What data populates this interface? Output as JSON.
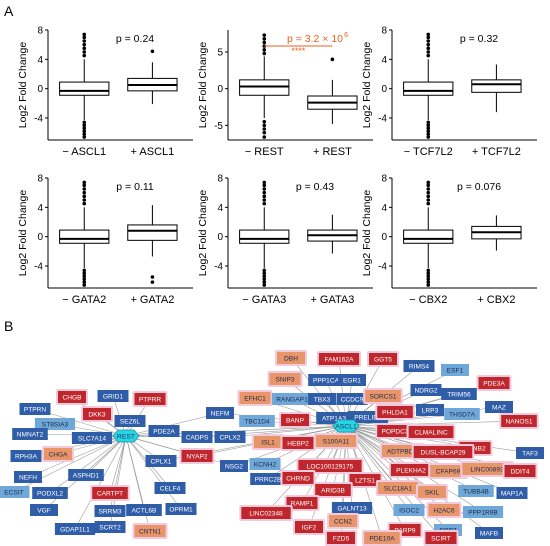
{
  "panel_a_label": "A",
  "panel_b_label": "B",
  "ylabel": "Log2 Fold Change",
  "superscript_six": "6",
  "chart_data": [
    {
      "type": "box",
      "id": "ascl1",
      "ylabel": "Log2 Fold Change",
      "ylim": [
        -7,
        8
      ],
      "yticks": [
        -4,
        0,
        4,
        8
      ],
      "categories": [
        "− ASCL1",
        "+ ASCL1"
      ],
      "pvalue": "p = 0.24",
      "boxes": [
        {
          "lower_whisker": -4.3,
          "q1": -0.9,
          "median": -0.3,
          "q3": 0.9,
          "upper_whisker": 4.0,
          "outliers": [
            -4.6,
            -5.0,
            -5.4,
            -5.8,
            -6.2,
            -6.6,
            4.5,
            5.0,
            5.5,
            6.0,
            6.5,
            7.0,
            7.4
          ]
        },
        {
          "lower_whisker": -2.1,
          "q1": -0.3,
          "median": 0.5,
          "q3": 1.4,
          "upper_whisker": 3.6,
          "outliers": [
            5.1
          ]
        }
      ]
    },
    {
      "type": "box",
      "id": "rest",
      "ylabel": "Log2 Fold Change",
      "ylim": [
        -7,
        8
      ],
      "yticks": [
        -5,
        0,
        5
      ],
      "categories": [
        "− REST",
        "+ REST"
      ],
      "pvalue": "p = 3.2 × 10",
      "pvalue_color": "#e8611a",
      "stars": "****",
      "boxes": [
        {
          "lower_whisker": -4.0,
          "q1": -0.9,
          "median": 0.3,
          "q3": 1.2,
          "upper_whisker": 4.4,
          "outliers": [
            -4.5,
            -5.0,
            -5.5,
            -6.0,
            -6.6,
            4.8,
            5.3,
            5.8,
            6.3,
            6.8,
            7.3
          ]
        },
        {
          "lower_whisker": -4.8,
          "q1": -2.8,
          "median": -1.9,
          "q3": -1.0,
          "upper_whisker": 1.2,
          "outliers": [
            4.0
          ]
        }
      ]
    },
    {
      "type": "box",
      "id": "tcf7l2",
      "ylabel": "Log2 Fold Change",
      "ylim": [
        -7,
        8
      ],
      "yticks": [
        -4,
        0,
        4,
        8
      ],
      "categories": [
        "− TCF7L2",
        "+ TCF7L2"
      ],
      "pvalue": "p = 0.32",
      "boxes": [
        {
          "lower_whisker": -4.3,
          "q1": -0.9,
          "median": -0.3,
          "q3": 0.9,
          "upper_whisker": 4.0,
          "outliers": [
            -4.6,
            -5.0,
            -5.4,
            -5.8,
            -6.2,
            -6.6,
            4.5,
            5.0,
            5.5,
            6.0,
            6.5,
            7.0,
            7.4
          ]
        },
        {
          "lower_whisker": -3.2,
          "q1": -0.5,
          "median": 0.6,
          "q3": 1.2,
          "upper_whisker": 3.3,
          "outliers": []
        }
      ]
    },
    {
      "type": "box",
      "id": "gata2",
      "ylabel": "Log2 Fold Change",
      "ylim": [
        -7,
        8
      ],
      "yticks": [
        -4,
        0,
        4,
        8
      ],
      "categories": [
        "− GATA2",
        "+ GATA2"
      ],
      "pvalue": "p = 0.11",
      "boxes": [
        {
          "lower_whisker": -4.3,
          "q1": -0.9,
          "median": -0.3,
          "q3": 0.9,
          "upper_whisker": 4.0,
          "outliers": [
            -4.6,
            -5.0,
            -5.4,
            -5.8,
            -6.2,
            -6.6,
            4.5,
            5.0,
            5.5,
            6.0,
            6.5,
            7.0,
            7.4
          ]
        },
        {
          "lower_whisker": -2.7,
          "q1": -0.5,
          "median": 0.8,
          "q3": 1.6,
          "upper_whisker": 4.3,
          "outliers": [
            -5.5,
            -6.2
          ]
        }
      ]
    },
    {
      "type": "box",
      "id": "gata3",
      "ylabel": "Log2 Fold Change",
      "ylim": [
        -7,
        8
      ],
      "yticks": [
        -4,
        0,
        4,
        8
      ],
      "categories": [
        "− GATA3",
        "+ GATA3"
      ],
      "pvalue": "p = 0.43",
      "boxes": [
        {
          "lower_whisker": -4.3,
          "q1": -0.9,
          "median": -0.3,
          "q3": 0.9,
          "upper_whisker": 4.0,
          "outliers": [
            -4.6,
            -5.0,
            -5.4,
            -5.8,
            -6.2,
            -6.6,
            4.5,
            5.0,
            5.5,
            6.0,
            6.5,
            7.0,
            7.4
          ]
        },
        {
          "lower_whisker": -2.3,
          "q1": -0.6,
          "median": 0.2,
          "q3": 0.9,
          "upper_whisker": 3.0,
          "outliers": []
        }
      ]
    },
    {
      "type": "box",
      "id": "cbx2",
      "ylabel": "Log2 Fold Change",
      "ylim": [
        -7,
        8
      ],
      "yticks": [
        -4,
        0,
        4,
        8
      ],
      "categories": [
        "− CBX2",
        "+ CBX2"
      ],
      "pvalue": "p = 0.076",
      "boxes": [
        {
          "lower_whisker": -4.3,
          "q1": -0.9,
          "median": -0.3,
          "q3": 0.9,
          "upper_whisker": 4.0,
          "outliers": [
            -4.6,
            -5.0,
            -5.4,
            -5.8,
            -6.2,
            -6.6,
            4.5,
            5.0,
            5.5,
            6.0,
            6.5,
            7.0,
            7.4
          ]
        },
        {
          "lower_whisker": -1.9,
          "q1": -0.3,
          "median": 0.6,
          "q3": 1.4,
          "upper_whisker": 2.9,
          "outliers": []
        }
      ]
    }
  ],
  "network": {
    "colors": {
      "darkblue": "#2f5da8",
      "lightblue": "#6ea7d8",
      "red": "#c0272d",
      "salmon": "#e8956a",
      "hub": "#2bd4e2",
      "edge": "#8a8a8a"
    },
    "hubs": [
      "REST",
      "ASCL1"
    ],
    "rest_genes": [
      {
        "label": "CHGB",
        "color": "red"
      },
      {
        "label": "GRID1",
        "color": "darkblue"
      },
      {
        "label": "PTPRR",
        "color": "red"
      },
      {
        "label": "DKK3",
        "color": "red"
      },
      {
        "label": "SEZ6L",
        "color": "darkblue"
      },
      {
        "label": "PTPRN",
        "color": "darkblue"
      },
      {
        "label": "ST8SIA3",
        "color": "lightblue"
      },
      {
        "label": "NMNAT2",
        "color": "darkblue"
      },
      {
        "label": "SLC7A14",
        "color": "darkblue"
      },
      {
        "label": "RPH3A",
        "color": "darkblue"
      },
      {
        "label": "CHGA",
        "color": "salmon"
      },
      {
        "label": "NEFH",
        "color": "darkblue"
      },
      {
        "label": "ASPHD1",
        "color": "darkblue"
      },
      {
        "label": "ECSIT",
        "color": "lightblue"
      },
      {
        "label": "PODXL2",
        "color": "darkblue"
      },
      {
        "label": "VGF",
        "color": "darkblue"
      },
      {
        "label": "CARTPT",
        "color": "red"
      },
      {
        "label": "SRRM3",
        "color": "darkblue"
      },
      {
        "label": "GDAP1L1",
        "color": "darkblue"
      },
      {
        "label": "SCRT2",
        "color": "darkblue"
      },
      {
        "label": "ACTL6B",
        "color": "darkblue"
      },
      {
        "label": "CNTN1",
        "color": "salmon"
      },
      {
        "label": "OPRM1",
        "color": "darkblue"
      },
      {
        "label": "CELF4",
        "color": "darkblue"
      },
      {
        "label": "PDE2A",
        "color": "darkblue"
      }
    ],
    "shared_genes": [
      {
        "label": "NEFM",
        "color": "darkblue"
      },
      {
        "label": "CADPS",
        "color": "darkblue"
      },
      {
        "label": "CPLX2",
        "color": "darkblue"
      },
      {
        "label": "CPLX1",
        "color": "darkblue"
      },
      {
        "label": "NYAP2",
        "color": "red"
      },
      {
        "label": "NSG2",
        "color": "darkblue"
      }
    ],
    "ascl1_genes": [
      {
        "label": "DBH",
        "color": "salmon"
      },
      {
        "label": "FAM162A",
        "color": "red"
      },
      {
        "label": "GGT5",
        "color": "red"
      },
      {
        "label": "SNIP3",
        "color": "salmon"
      },
      {
        "label": "PPP1CA",
        "color": "darkblue"
      },
      {
        "label": "EGR1",
        "color": "darkblue"
      },
      {
        "label": "RIMS4",
        "color": "darkblue"
      },
      {
        "label": "ESF1",
        "color": "lightblue"
      },
      {
        "label": "EFHC1",
        "color": "salmon"
      },
      {
        "label": "RANGAP1",
        "color": "lightblue"
      },
      {
        "label": "TBX3",
        "color": "darkblue"
      },
      {
        "label": "CCDC9",
        "color": "darkblue"
      },
      {
        "label": "NDRG2",
        "color": "darkblue"
      },
      {
        "label": "SORCS1",
        "color": "salmon"
      },
      {
        "label": "PDE3A",
        "color": "red"
      },
      {
        "label": "ATP1A3",
        "color": "darkblue"
      },
      {
        "label": "PRELID1",
        "color": "darkblue"
      },
      {
        "label": "TRIM56",
        "color": "darkblue"
      },
      {
        "label": "TBC1D4",
        "color": "lightblue"
      },
      {
        "label": "BANP",
        "color": "red"
      },
      {
        "label": "PHLDA1",
        "color": "red"
      },
      {
        "label": "LRP3",
        "color": "darkblue"
      },
      {
        "label": "THSD7A",
        "color": "lightblue"
      },
      {
        "label": "MAZ",
        "color": "darkblue"
      },
      {
        "label": "S100A11",
        "color": "salmon"
      },
      {
        "label": "POPDC3",
        "color": "red"
      },
      {
        "label": "CLMALINC",
        "color": "red"
      },
      {
        "label": "NANOS1",
        "color": "red"
      },
      {
        "label": "ISL1",
        "color": "salmon"
      },
      {
        "label": "HEBP2",
        "color": "red"
      },
      {
        "label": "ADTPBD1",
        "color": "salmon"
      },
      {
        "label": "EFNB2",
        "color": "red"
      },
      {
        "label": "TAF3",
        "color": "darkblue"
      },
      {
        "label": "KCNH2",
        "color": "lightblue"
      },
      {
        "label": "LOC100129175",
        "color": "red"
      },
      {
        "label": "PLEKHA2",
        "color": "red"
      },
      {
        "label": "DUSL-BCAP29",
        "color": "red"
      },
      {
        "label": "CFAP69",
        "color": "salmon"
      },
      {
        "label": "LINC00893",
        "color": "salmon"
      },
      {
        "label": "DDIT4",
        "color": "red"
      },
      {
        "label": "PRRC2B",
        "color": "darkblue"
      },
      {
        "label": "CHRND",
        "color": "red"
      },
      {
        "label": "LZTS1",
        "color": "red"
      },
      {
        "label": "SLC18A1",
        "color": "salmon"
      },
      {
        "label": "SKIL",
        "color": "salmon"
      },
      {
        "label": "TUBB4B",
        "color": "lightblue"
      },
      {
        "label": "MAP1A",
        "color": "darkblue"
      },
      {
        "label": "ARID3B",
        "color": "red"
      },
      {
        "label": "RAMP1",
        "color": "red"
      },
      {
        "label": "GALNT13",
        "color": "darkblue"
      },
      {
        "label": "ISOC2",
        "color": "lightblue"
      },
      {
        "label": "H2AC6",
        "color": "salmon"
      },
      {
        "label": "PPP1R9B",
        "color": "lightblue"
      },
      {
        "label": "LINC02348",
        "color": "red"
      },
      {
        "label": "CCN2",
        "color": "salmon"
      },
      {
        "label": "IGF2",
        "color": "red"
      },
      {
        "label": "FZD5",
        "color": "red"
      },
      {
        "label": "PARP9",
        "color": "red"
      },
      {
        "label": "DPP7",
        "color": "lightblue"
      },
      {
        "label": "MAFB",
        "color": "darkblue"
      },
      {
        "label": "PDE10A",
        "color": "salmon"
      },
      {
        "label": "SCIRT",
        "color": "red"
      }
    ]
  }
}
